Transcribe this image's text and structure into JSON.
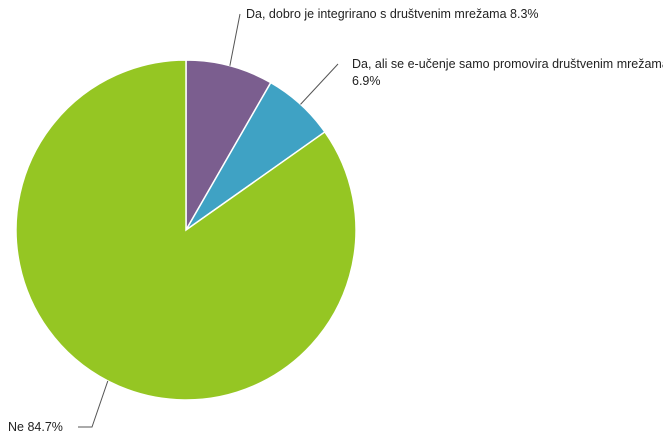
{
  "chart_data": {
    "type": "pie",
    "categories": [
      "Da, dobro je integrirano s društvenim mrežama",
      "Da, ali se e-učenje samo promovira društvenim mrežama",
      "Ne"
    ],
    "values": [
      8.3,
      6.9,
      84.7
    ],
    "value_labels": [
      "8.3%",
      "6.9%",
      "84.7%"
    ],
    "colors": [
      "#7b5e8f",
      "#3fa2c4",
      "#95c623"
    ]
  }
}
